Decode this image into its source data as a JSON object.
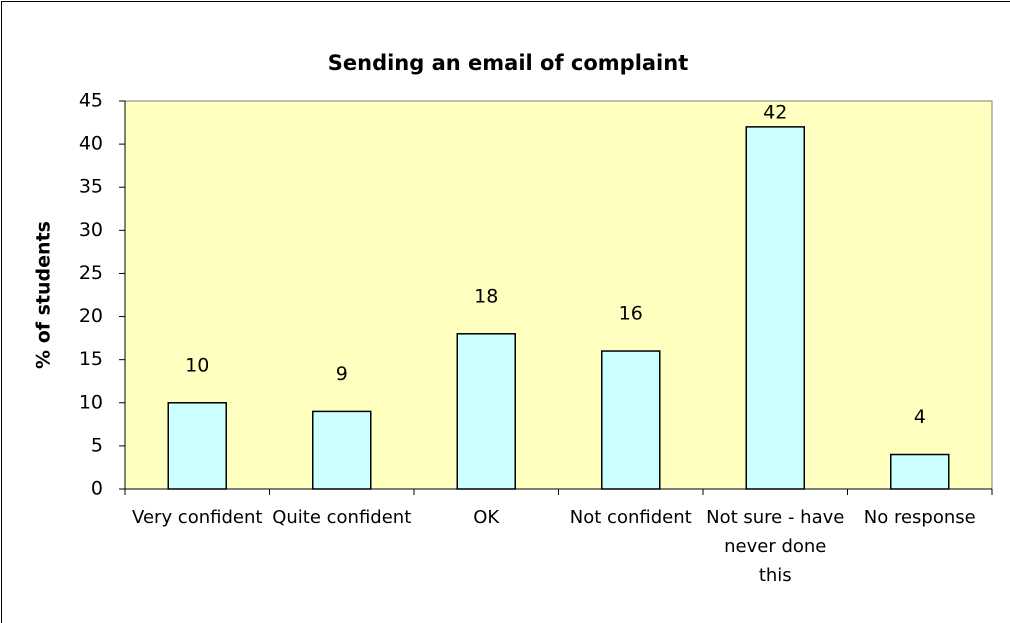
{
  "chart_data": {
    "type": "bar",
    "title": "Sending an email of complaint",
    "y_label": "% of students",
    "categories": [
      "Very confident",
      "Quite confident",
      "OK",
      "Not confident",
      "Not sure - have never done this",
      "No response"
    ],
    "values": [
      10,
      9,
      18,
      16,
      42,
      4
    ],
    "color": "#ccffff",
    "plot_background": "#ffffc0",
    "ylim": [
      0,
      45
    ],
    "yticks": [
      0,
      5,
      10,
      15,
      20,
      25,
      30,
      35,
      40,
      45
    ],
    "grid": false
  }
}
